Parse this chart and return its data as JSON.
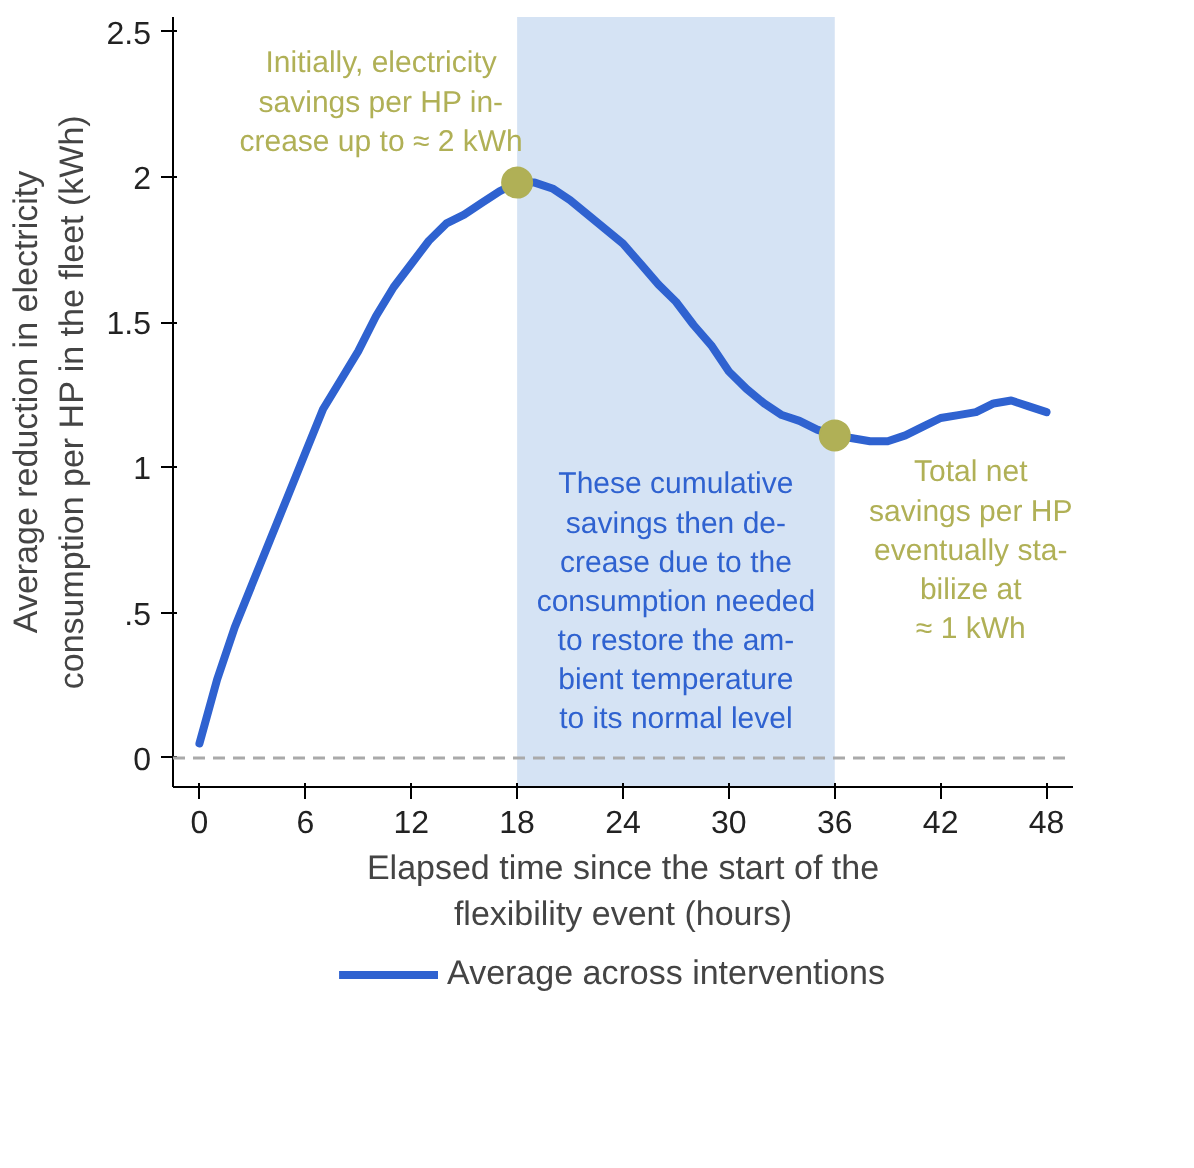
{
  "chart_data": {
    "type": "line",
    "xlabel": "Elapsed time since the start of the\nflexibility event (hours)",
    "ylabel": "Average reduction in electricity\nconsumption per HP in the fleet (kWh)",
    "xlim": [
      -1.5,
      49.5
    ],
    "ylim": [
      -0.1,
      2.55
    ],
    "xticks": [
      0,
      6,
      12,
      18,
      24,
      30,
      36,
      42,
      48
    ],
    "yticks": [
      0,
      {
        "value": 0.5,
        "label": ".5"
      },
      1,
      1.5,
      2,
      2.5
    ],
    "grid": false,
    "legend": "bottom",
    "series": [
      {
        "name": "Average across interventions",
        "color": "#2f62d0",
        "x": [
          0,
          1,
          2,
          3,
          4,
          5,
          6,
          7,
          8,
          9,
          10,
          11,
          12,
          13,
          14,
          15,
          16,
          17,
          18,
          19,
          20,
          21,
          22,
          23,
          24,
          25,
          26,
          27,
          28,
          29,
          30,
          31,
          32,
          33,
          34,
          35,
          36,
          37,
          38,
          39,
          40,
          41,
          42,
          43,
          44,
          45,
          46,
          47,
          48
        ],
        "values": [
          0.05,
          0.27,
          0.45,
          0.6,
          0.75,
          0.9,
          1.05,
          1.2,
          1.3,
          1.4,
          1.52,
          1.62,
          1.7,
          1.78,
          1.84,
          1.87,
          1.91,
          1.95,
          1.98,
          1.98,
          1.96,
          1.92,
          1.87,
          1.82,
          1.77,
          1.7,
          1.63,
          1.57,
          1.49,
          1.42,
          1.33,
          1.27,
          1.22,
          1.18,
          1.16,
          1.13,
          1.11,
          1.1,
          1.09,
          1.09,
          1.11,
          1.14,
          1.17,
          1.18,
          1.19,
          1.22,
          1.23,
          1.21,
          1.19
        ]
      },
      {
        "type": "scatter",
        "color": "#b0b056",
        "x": [
          18,
          36
        ],
        "values": [
          1.98,
          1.11
        ]
      }
    ],
    "bands": [
      {
        "axis": "x",
        "from": 18,
        "to": 36,
        "color": "#d5e3f4",
        "label": "These cumulative\nsavings then de-\ncrease due to the\nconsumption needed\nto restore the am-\nbient temperature\nto its normal level"
      }
    ],
    "ref_lines": [
      {
        "axis": "y",
        "value": 0,
        "color": "#aaaaaa",
        "line_style": "dashed"
      }
    ],
    "annotations": [
      {
        "text": "Initially, electricity\nsavings per HP in-\ncrease up to ≈ 2 kWh",
        "x": 18,
        "y": 1.98
      },
      {
        "text": "Total net\nsavings per HP\neventually sta-\nbilize at\n≈ 1 kWh",
        "x": 36,
        "y": 1.11
      }
    ]
  }
}
